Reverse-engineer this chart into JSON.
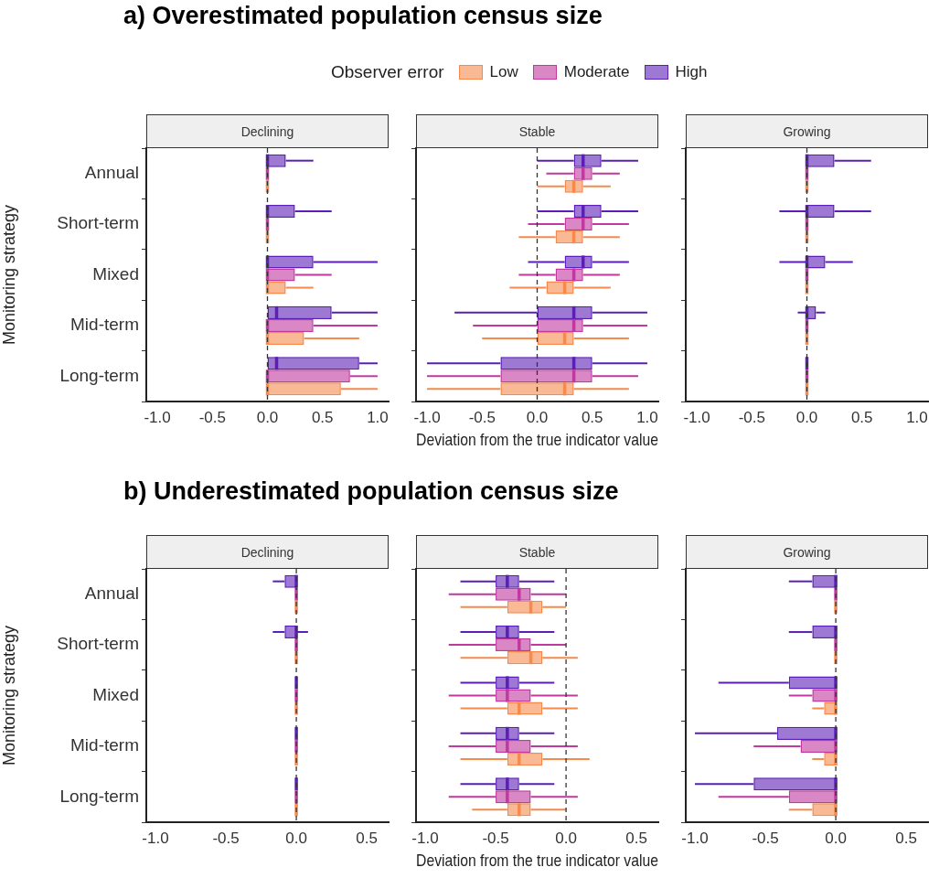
{
  "chart_data": [
    {
      "type": "box",
      "orientation": "horizontal",
      "title": "Declining",
      "annotations": [
        "a) Overestimated population census size"
      ],
      "ylabel": "Monitoring strategy",
      "legend": "top",
      "legend_title": "Observer error",
      "categories": [
        "Annual",
        "Short-term",
        "Mixed",
        "Mid-term",
        "Long-term"
      ],
      "xlim": [
        -1.1,
        1.1
      ],
      "xticks": [
        {
          "value": -1,
          "label": "-1.0"
        },
        {
          "value": -0.5,
          "label": "-0.5"
        },
        {
          "value": 0,
          "label": "0.0"
        },
        {
          "value": 0.5,
          "label": "0.5"
        },
        {
          "value": 1,
          "label": "1.0"
        }
      ],
      "ref_lines": [
        {
          "axis": "x",
          "value": 0,
          "line_style": "dashed"
        }
      ],
      "series": [
        {
          "name": "Low",
          "color": "#f58a4c",
          "boxes": [
            {
              "low": 0,
              "q1": 0,
              "median": 0,
              "q3": 0,
              "high": 0
            },
            {
              "low": 0,
              "q1": 0,
              "median": 0,
              "q3": 0,
              "high": 0
            },
            {
              "low": 0,
              "q1": 0,
              "median": 0,
              "q3": 0.167,
              "high": 0.417
            },
            {
              "low": 0,
              "q1": 0,
              "median": 0,
              "q3": 0.333,
              "high": 0.833
            },
            {
              "low": 0,
              "q1": 0,
              "median": 0,
              "q3": 0.667,
              "high": 1
            }
          ]
        },
        {
          "name": "Moderate",
          "color": "#c0399f",
          "boxes": [
            {
              "low": 0,
              "q1": 0,
              "median": 0,
              "q3": 0,
              "high": 0
            },
            {
              "low": 0,
              "q1": 0,
              "median": 0,
              "q3": 0,
              "high": 0
            },
            {
              "low": 0,
              "q1": 0,
              "median": 0,
              "q3": 0.25,
              "high": 0.583
            },
            {
              "low": 0,
              "q1": 0,
              "median": 0,
              "q3": 0.417,
              "high": 1
            },
            {
              "low": 0,
              "q1": 0,
              "median": 0,
              "q3": 0.75,
              "high": 1
            }
          ]
        },
        {
          "name": "High",
          "color": "#5b1fb5",
          "boxes": [
            {
              "low": 0,
              "q1": 0,
              "median": 0,
              "q3": 0.167,
              "high": 0.417
            },
            {
              "low": 0,
              "q1": 0,
              "median": 0,
              "q3": 0.25,
              "high": 0.583
            },
            {
              "low": 0,
              "q1": 0,
              "median": 0,
              "q3": 0.417,
              "high": 1
            },
            {
              "low": 0,
              "q1": 0,
              "median": 0.083,
              "q3": 0.583,
              "high": 1
            },
            {
              "low": 0,
              "q1": 0,
              "median": 0.083,
              "q3": 0.833,
              "high": 1
            }
          ]
        }
      ]
    },
    {
      "type": "box",
      "orientation": "horizontal",
      "title": "Stable",
      "xlabel": "Deviation from the true indicator value",
      "tick_labels": "x",
      "categories": [
        "Annual",
        "Short-term",
        "Mixed",
        "Mid-term",
        "Long-term"
      ],
      "xlim": [
        -1.1,
        1.1
      ],
      "xticks": [
        {
          "value": -1,
          "label": "-1.0"
        },
        {
          "value": -0.5,
          "label": "-0.5"
        },
        {
          "value": 0,
          "label": "0.0"
        },
        {
          "value": 0.5,
          "label": "0.5"
        },
        {
          "value": 1,
          "label": "1.0"
        }
      ],
      "ref_lines": [
        {
          "axis": "x",
          "value": 0,
          "line_style": "dashed"
        }
      ],
      "series": [
        {
          "name": "Low",
          "color": "#f58a4c",
          "boxes": [
            {
              "low": 0,
              "q1": 0.25,
              "median": 0.333,
              "q3": 0.417,
              "high": 0.667
            },
            {
              "low": -0.167,
              "q1": 0.167,
              "median": 0.333,
              "q3": 0.417,
              "high": 0.75
            },
            {
              "low": -0.25,
              "q1": 0.083,
              "median": 0.25,
              "q3": 0.333,
              "high": 0.667
            },
            {
              "low": -0.5,
              "q1": 0,
              "median": 0.25,
              "q3": 0.333,
              "high": 0.833
            },
            {
              "low": -1,
              "q1": -0.333,
              "median": 0.25,
              "q3": 0.333,
              "high": 0.833
            }
          ]
        },
        {
          "name": "Moderate",
          "color": "#c0399f",
          "boxes": [
            {
              "low": 0.083,
              "q1": 0.333,
              "median": 0.417,
              "q3": 0.5,
              "high": 0.75
            },
            {
              "low": -0.083,
              "q1": 0.25,
              "median": 0.417,
              "q3": 0.5,
              "high": 0.833
            },
            {
              "low": -0.167,
              "q1": 0.167,
              "median": 0.333,
              "q3": 0.417,
              "high": 0.75
            },
            {
              "low": -0.583,
              "q1": 0,
              "median": 0.333,
              "q3": 0.417,
              "high": 1
            },
            {
              "low": -1,
              "q1": -0.333,
              "median": 0.333,
              "q3": 0.5,
              "high": 0.917
            }
          ]
        },
        {
          "name": "High",
          "color": "#5b1fb5",
          "boxes": [
            {
              "low": 0,
              "q1": 0.333,
              "median": 0.417,
              "q3": 0.583,
              "high": 0.917
            },
            {
              "low": 0,
              "q1": 0.333,
              "median": 0.417,
              "q3": 0.583,
              "high": 0.917
            },
            {
              "low": -0.083,
              "q1": 0.25,
              "median": 0.417,
              "q3": 0.5,
              "high": 0.833
            },
            {
              "low": -0.75,
              "q1": 0,
              "median": 0.333,
              "q3": 0.5,
              "high": 1
            },
            {
              "low": -1,
              "q1": -0.333,
              "median": 0.333,
              "q3": 0.5,
              "high": 1
            }
          ]
        }
      ]
    },
    {
      "type": "box",
      "orientation": "horizontal",
      "title": "Growing",
      "tick_labels": "x",
      "categories": [
        "Annual",
        "Short-term",
        "Mixed",
        "Mid-term",
        "Long-term"
      ],
      "xlim": [
        -1.1,
        1.1
      ],
      "xticks": [
        {
          "value": -1,
          "label": "-1.0"
        },
        {
          "value": -0.5,
          "label": "-0.5"
        },
        {
          "value": 0,
          "label": "0.0"
        },
        {
          "value": 0.5,
          "label": "0.5"
        },
        {
          "value": 1,
          "label": "1.0"
        }
      ],
      "ref_lines": [
        {
          "axis": "x",
          "value": 0,
          "line_style": "dashed"
        }
      ],
      "series": [
        {
          "name": "Low",
          "color": "#f58a4c",
          "boxes": [
            {
              "low": 0,
              "q1": 0,
              "median": 0,
              "q3": 0,
              "high": 0
            },
            {
              "low": 0,
              "q1": 0,
              "median": 0,
              "q3": 0,
              "high": 0
            },
            {
              "low": 0,
              "q1": 0,
              "median": 0,
              "q3": 0,
              "high": 0
            },
            {
              "low": 0,
              "q1": 0,
              "median": 0,
              "q3": 0,
              "high": 0
            },
            {
              "low": 0,
              "q1": 0,
              "median": 0,
              "q3": 0,
              "high": 0
            }
          ]
        },
        {
          "name": "Moderate",
          "color": "#c0399f",
          "boxes": [
            {
              "low": 0,
              "q1": 0,
              "median": 0,
              "q3": 0,
              "high": 0
            },
            {
              "low": 0,
              "q1": 0,
              "median": 0,
              "q3": 0,
              "high": 0
            },
            {
              "low": 0,
              "q1": 0,
              "median": 0,
              "q3": 0,
              "high": 0
            },
            {
              "low": 0,
              "q1": 0,
              "median": 0,
              "q3": 0,
              "high": 0
            },
            {
              "low": 0,
              "q1": 0,
              "median": 0,
              "q3": 0,
              "high": 0
            }
          ]
        },
        {
          "name": "High",
          "color": "#5b1fb5",
          "boxes": [
            {
              "low": 0,
              "q1": 0,
              "median": 0,
              "q3": 0.25,
              "high": 0.583
            },
            {
              "low": -0.25,
              "q1": 0,
              "median": 0,
              "q3": 0.25,
              "high": 0.583
            },
            {
              "low": -0.25,
              "q1": 0,
              "median": 0,
              "q3": 0.167,
              "high": 0.417
            },
            {
              "low": -0.083,
              "q1": 0,
              "median": 0,
              "q3": 0.083,
              "high": 0.167
            },
            {
              "low": 0,
              "q1": 0,
              "median": 0,
              "q3": 0,
              "high": 0
            }
          ]
        }
      ]
    },
    {
      "type": "box",
      "orientation": "horizontal",
      "title": "Declining",
      "annotations": [
        "b) Underestimated population census size"
      ],
      "ylabel": "Monitoring strategy",
      "categories": [
        "Annual",
        "Short-term",
        "Mixed",
        "Mid-term",
        "Long-term"
      ],
      "xlim": [
        -1.065,
        0.655
      ],
      "xticks": [
        {
          "value": -1,
          "label": "-1.0"
        },
        {
          "value": -0.5,
          "label": "-0.5"
        },
        {
          "value": 0,
          "label": "0.0"
        },
        {
          "value": 0.5,
          "label": "0.5"
        }
      ],
      "ref_lines": [
        {
          "axis": "x",
          "value": 0,
          "line_style": "dashed"
        }
      ],
      "series": [
        {
          "name": "Low",
          "color": "#f58a4c",
          "boxes": [
            {
              "low": 0,
              "q1": 0,
              "median": 0,
              "q3": 0,
              "high": 0
            },
            {
              "low": 0,
              "q1": 0,
              "median": 0,
              "q3": 0,
              "high": 0
            },
            {
              "low": 0,
              "q1": 0,
              "median": 0,
              "q3": 0,
              "high": 0
            },
            {
              "low": 0,
              "q1": 0,
              "median": 0,
              "q3": 0,
              "high": 0
            },
            {
              "low": 0,
              "q1": 0,
              "median": 0,
              "q3": 0,
              "high": 0
            }
          ]
        },
        {
          "name": "Moderate",
          "color": "#c0399f",
          "boxes": [
            {
              "low": 0,
              "q1": 0,
              "median": 0,
              "q3": 0,
              "high": 0
            },
            {
              "low": 0,
              "q1": 0,
              "median": 0,
              "q3": 0,
              "high": 0
            },
            {
              "low": 0,
              "q1": 0,
              "median": 0,
              "q3": 0,
              "high": 0
            },
            {
              "low": 0,
              "q1": 0,
              "median": 0,
              "q3": 0,
              "high": 0
            },
            {
              "low": 0,
              "q1": 0,
              "median": 0,
              "q3": 0,
              "high": 0
            }
          ]
        },
        {
          "name": "High",
          "color": "#5b1fb5",
          "boxes": [
            {
              "low": -0.167,
              "q1": -0.083,
              "median": 0,
              "q3": 0,
              "high": 0
            },
            {
              "low": -0.167,
              "q1": -0.083,
              "median": 0,
              "q3": 0,
              "high": 0.083
            },
            {
              "low": 0,
              "q1": 0,
              "median": 0,
              "q3": 0,
              "high": 0
            },
            {
              "low": 0,
              "q1": 0,
              "median": 0,
              "q3": 0,
              "high": 0
            },
            {
              "low": 0,
              "q1": 0,
              "median": 0,
              "q3": 0,
              "high": 0
            }
          ]
        }
      ]
    },
    {
      "type": "box",
      "orientation": "horizontal",
      "title": "Stable",
      "xlabel": "Deviation from the true indicator value",
      "tick_labels": "x",
      "categories": [
        "Annual",
        "Short-term",
        "Mixed",
        "Mid-term",
        "Long-term"
      ],
      "xlim": [
        -1.065,
        0.655
      ],
      "xticks": [
        {
          "value": -1,
          "label": "-1.0"
        },
        {
          "value": -0.5,
          "label": "-0.5"
        },
        {
          "value": 0,
          "label": "0.0"
        },
        {
          "value": 0.5,
          "label": "0.5"
        }
      ],
      "ref_lines": [
        {
          "axis": "x",
          "value": 0,
          "line_style": "dashed"
        }
      ],
      "series": [
        {
          "name": "Low",
          "color": "#f58a4c",
          "boxes": [
            {
              "low": -0.75,
              "q1": -0.417,
              "median": -0.25,
              "q3": -0.167,
              "high": 0
            },
            {
              "low": -0.75,
              "q1": -0.417,
              "median": -0.25,
              "q3": -0.167,
              "high": 0.083
            },
            {
              "low": -0.75,
              "q1": -0.417,
              "median": -0.333,
              "q3": -0.167,
              "high": 0.083
            },
            {
              "low": -0.75,
              "q1": -0.417,
              "median": -0.333,
              "q3": -0.167,
              "high": 0.167
            },
            {
              "low": -0.667,
              "q1": -0.417,
              "median": -0.333,
              "q3": -0.25,
              "high": 0
            }
          ]
        },
        {
          "name": "Moderate",
          "color": "#c0399f",
          "boxes": [
            {
              "low": -0.833,
              "q1": -0.5,
              "median": -0.333,
              "q3": -0.25,
              "high": 0
            },
            {
              "low": -0.833,
              "q1": -0.5,
              "median": -0.333,
              "q3": -0.25,
              "high": 0
            },
            {
              "low": -0.833,
              "q1": -0.5,
              "median": -0.417,
              "q3": -0.25,
              "high": 0.083
            },
            {
              "low": -0.833,
              "q1": -0.5,
              "median": -0.417,
              "q3": -0.25,
              "high": 0.083
            },
            {
              "low": -0.833,
              "q1": -0.5,
              "median": -0.417,
              "q3": -0.25,
              "high": 0.083
            }
          ]
        },
        {
          "name": "High",
          "color": "#5b1fb5",
          "boxes": [
            {
              "low": -0.75,
              "q1": -0.5,
              "median": -0.417,
              "q3": -0.333,
              "high": -0.083
            },
            {
              "low": -0.75,
              "q1": -0.5,
              "median": -0.417,
              "q3": -0.333,
              "high": -0.083
            },
            {
              "low": -0.75,
              "q1": -0.5,
              "median": -0.417,
              "q3": -0.333,
              "high": -0.083
            },
            {
              "low": -0.75,
              "q1": -0.5,
              "median": -0.417,
              "q3": -0.333,
              "high": -0.083
            },
            {
              "low": -0.75,
              "q1": -0.5,
              "median": -0.417,
              "q3": -0.333,
              "high": -0.083
            }
          ]
        }
      ]
    },
    {
      "type": "box",
      "orientation": "horizontal",
      "title": "Growing",
      "tick_labels": "x",
      "categories": [
        "Annual",
        "Short-term",
        "Mixed",
        "Mid-term",
        "Long-term"
      ],
      "xlim": [
        -1.065,
        0.655
      ],
      "xticks": [
        {
          "value": -1,
          "label": "-1.0"
        },
        {
          "value": -0.5,
          "label": "-0.5"
        },
        {
          "value": 0,
          "label": "0.0"
        },
        {
          "value": 0.5,
          "label": "0.5"
        }
      ],
      "ref_lines": [
        {
          "axis": "x",
          "value": 0,
          "line_style": "dashed"
        }
      ],
      "series": [
        {
          "name": "Low",
          "color": "#f58a4c",
          "boxes": [
            {
              "low": 0,
              "q1": 0,
              "median": 0,
              "q3": 0,
              "high": 0
            },
            {
              "low": 0,
              "q1": 0,
              "median": 0,
              "q3": 0,
              "high": 0
            },
            {
              "low": -0.167,
              "q1": -0.083,
              "median": 0,
              "q3": 0,
              "high": 0
            },
            {
              "low": -0.167,
              "q1": -0.083,
              "median": 0,
              "q3": 0,
              "high": 0
            },
            {
              "low": -0.333,
              "q1": -0.167,
              "median": 0,
              "q3": 0,
              "high": 0
            }
          ]
        },
        {
          "name": "Moderate",
          "color": "#c0399f",
          "boxes": [
            {
              "low": 0,
              "q1": 0,
              "median": 0,
              "q3": 0,
              "high": 0
            },
            {
              "low": 0,
              "q1": 0,
              "median": 0,
              "q3": 0,
              "high": 0
            },
            {
              "low": -0.333,
              "q1": -0.167,
              "median": 0,
              "q3": 0,
              "high": 0
            },
            {
              "low": -0.583,
              "q1": -0.25,
              "median": 0,
              "q3": 0,
              "high": 0
            },
            {
              "low": -0.833,
              "q1": -0.333,
              "median": 0,
              "q3": 0,
              "high": 0
            }
          ]
        },
        {
          "name": "High",
          "color": "#5b1fb5",
          "boxes": [
            {
              "low": -0.333,
              "q1": -0.167,
              "median": 0,
              "q3": 0,
              "high": 0
            },
            {
              "low": -0.333,
              "q1": -0.167,
              "median": 0,
              "q3": 0,
              "high": 0
            },
            {
              "low": -0.833,
              "q1": -0.333,
              "median": 0,
              "q3": 0,
              "high": 0
            },
            {
              "low": -1,
              "q1": -0.417,
              "median": 0,
              "q3": 0,
              "high": 0
            },
            {
              "low": -1,
              "q1": -0.583,
              "median": 0,
              "q3": 0,
              "high": 0
            }
          ]
        }
      ]
    }
  ]
}
